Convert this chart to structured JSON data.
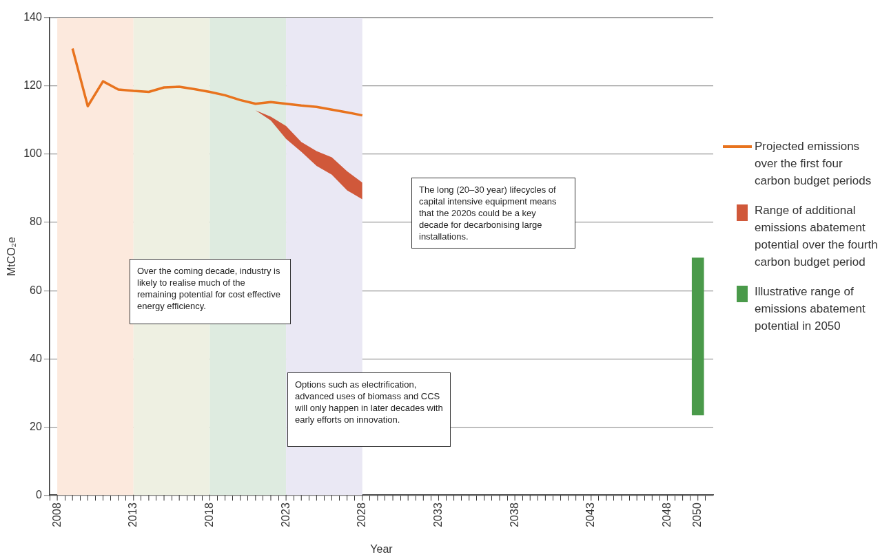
{
  "chart_data": {
    "type": "line",
    "xlabel": "Year",
    "ylabel": "MtCO₂e",
    "xlim": [
      2008,
      2050.5
    ],
    "ylim": [
      0,
      140
    ],
    "xticks": [
      2008,
      {
        "value": 2009,
        "label": null
      },
      {
        "value": 2010,
        "label": null
      },
      {
        "value": 2011,
        "label": null
      },
      {
        "value": 2012,
        "label": null
      },
      2013,
      {
        "value": 2014,
        "label": null
      },
      {
        "value": 2015,
        "label": null
      },
      {
        "value": 2016,
        "label": null
      },
      {
        "value": 2017,
        "label": null
      },
      2018,
      {
        "value": 2019,
        "label": null
      },
      {
        "value": 2020,
        "label": null
      },
      {
        "value": 2021,
        "label": null
      },
      {
        "value": 2022,
        "label": null
      },
      2023,
      {
        "value": 2024,
        "label": null
      },
      {
        "value": 2025,
        "label": null
      },
      {
        "value": 2026,
        "label": null
      },
      {
        "value": 2027,
        "label": null
      },
      2028,
      {
        "value": 2029,
        "label": null
      },
      {
        "value": 2030,
        "label": null
      },
      {
        "value": 2031,
        "label": null
      },
      {
        "value": 2032,
        "label": null
      },
      2033,
      {
        "value": 2034,
        "label": null
      },
      {
        "value": 2035,
        "label": null
      },
      {
        "value": 2036,
        "label": null
      },
      {
        "value": 2037,
        "label": null
      },
      2038,
      {
        "value": 2039,
        "label": null
      },
      {
        "value": 2040,
        "label": null
      },
      {
        "value": 2041,
        "label": null
      },
      {
        "value": 2042,
        "label": null
      },
      2043,
      {
        "value": 2044,
        "label": null
      },
      {
        "value": 2045,
        "label": null
      },
      {
        "value": 2046,
        "label": null
      },
      {
        "value": 2047,
        "label": null
      },
      2048,
      {
        "value": 2049,
        "label": null
      },
      2050
    ],
    "yticks": [
      0,
      20,
      40,
      60,
      80,
      100,
      120,
      140
    ],
    "grid": "y",
    "legend": "right",
    "marker": "none",
    "bands": [
      {
        "axis": "x",
        "from": 2008,
        "to": 2013,
        "color": "#fce9dd"
      },
      {
        "axis": "x",
        "from": 2013,
        "to": 2018,
        "color": "#eef0e2"
      },
      {
        "axis": "x",
        "from": 2018,
        "to": 2023,
        "color": "#deebe0"
      },
      {
        "axis": "x",
        "from": 2023,
        "to": 2028,
        "color": "#eae8f4"
      }
    ],
    "series": [
      {
        "name": "Projected emissions over the first four carbon budget periods",
        "color": "#e8731e",
        "x": [
          2009,
          2010,
          2011,
          2012,
          2013,
          2014,
          2015,
          2016,
          2017,
          2018,
          2019,
          2020,
          2021,
          2022,
          2023,
          2024,
          2025,
          2026,
          2027,
          2028
        ],
        "values": [
          131.0,
          114.1,
          121.4,
          119.0,
          118.6,
          118.3,
          119.6,
          119.8,
          119.1,
          118.3,
          117.3,
          115.9,
          114.8,
          115.3,
          114.8,
          114.3,
          113.9,
          113.1,
          112.3,
          111.4
        ]
      },
      {
        "name": "Range of additional emissions abatement potential over the fourth carbon budget period",
        "type": "area",
        "color": "#d0583a",
        "x": [
          2021,
          2022,
          2023,
          2024,
          2025,
          2026,
          2027,
          2028
        ],
        "values": [
          null,
          null,
          null,
          null,
          null,
          null,
          null,
          null
        ],
        "lower": [
          112.9,
          109.9,
          104.5,
          100.7,
          96.6,
          94.0,
          89.4,
          86.8
        ],
        "upper": [
          112.9,
          111.0,
          108.3,
          103.6,
          100.9,
          99.1,
          95.0,
          91.7
        ]
      },
      {
        "name": "Illustrative range of emissions abatement potential in 2050",
        "type": "bar",
        "color": "#4a9a4a",
        "x": [
          2050
        ],
        "base": [
          23.5
        ],
        "values": [
          46.1
        ]
      }
    ],
    "annotations": [
      "The long (20–30 year) lifecycles of capital intensive equipment means that the 2020s could be a key decade for decarbonising large installations.",
      "Over the coming decade, industry is likely to realise much of the remaining potential for cost effective energy efficiency.",
      "Options such as electrification, advanced uses of biomass and CCS will only happen in later decades with early efforts on innovation."
    ]
  }
}
